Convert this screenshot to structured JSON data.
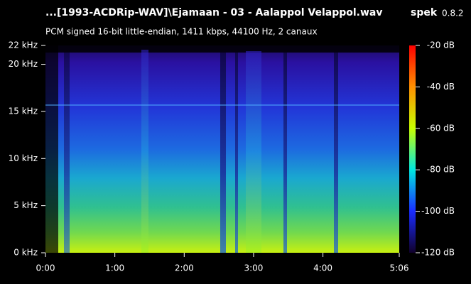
{
  "chart_data": {
    "type": "spectrogram",
    "title": "...[1993-ACDRip-WAV]\\Ejamaan - 03 - Aalappol Velappol.wav",
    "app_name": "spek",
    "app_version": "0.8.2",
    "subtitle": "PCM signed 16-bit little-endian, 1411 kbps, 44100 Hz, 2 canaux",
    "xlim": [
      0,
      306
    ],
    "xticks": [
      {
        "value": 0,
        "label": "0:00"
      },
      {
        "value": 60,
        "label": "1:00"
      },
      {
        "value": 120,
        "label": "2:00"
      },
      {
        "value": 180,
        "label": "3:00"
      },
      {
        "value": 240,
        "label": "4:00"
      },
      {
        "value": 306,
        "label": "5:06"
      }
    ],
    "ylim": [
      0,
      22
    ],
    "yticks": [
      {
        "value": 0,
        "label": "0 kHz"
      },
      {
        "value": 5,
        "label": "5 kHz"
      },
      {
        "value": 10,
        "label": "10 kHz"
      },
      {
        "value": 15,
        "label": "15 kHz"
      },
      {
        "value": 20,
        "label": "20 kHz"
      },
      {
        "value": 22,
        "label": "22 kHz"
      }
    ],
    "colorbar_lim": [
      -120,
      -20
    ],
    "colorbar_ticks": [
      {
        "value": -20,
        "label": "-20 dB"
      },
      {
        "value": -40,
        "label": "-40 dB"
      },
      {
        "value": -60,
        "label": "-60 dB"
      },
      {
        "value": -80,
        "label": "-80 dB"
      },
      {
        "value": -100,
        "label": "-100 dB"
      },
      {
        "value": -120,
        "label": "-120 dB"
      }
    ]
  }
}
